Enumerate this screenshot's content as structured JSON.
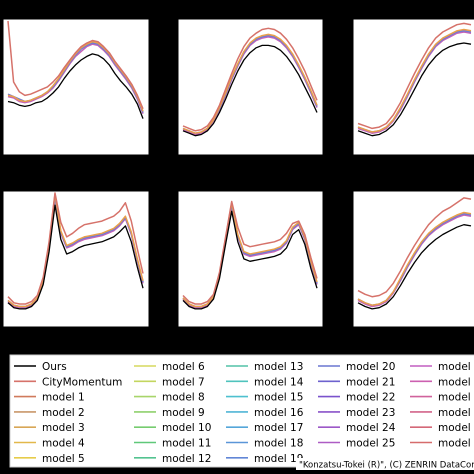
{
  "caption": "\"Konzatsu-Tokei (R)\", (C) ZENRIN DataCom",
  "legend": {
    "columns": [
      [
        {
          "label": "Ours",
          "color": "#000000"
        },
        {
          "label": "CityMomentum",
          "color": "#d6726a"
        },
        {
          "label": "model 1",
          "color": "#d07a5c"
        },
        {
          "label": "model 2",
          "color": "#c9976a"
        },
        {
          "label": "model 3",
          "color": "#d8a656"
        },
        {
          "label": "model 4",
          "color": "#e2b84a"
        },
        {
          "label": "model 5",
          "color": "#e6cc4a"
        }
      ],
      [
        {
          "label": "model 6",
          "color": "#d5d85e"
        },
        {
          "label": "model 7",
          "color": "#c3d65f"
        },
        {
          "label": "model 8",
          "color": "#a8d56a"
        },
        {
          "label": "model 9",
          "color": "#8fd16d"
        },
        {
          "label": "model 10",
          "color": "#76cc6f"
        },
        {
          "label": "model 11",
          "color": "#5fc879"
        },
        {
          "label": "model 12",
          "color": "#54c390"
        }
      ],
      [
        {
          "label": "model 13",
          "color": "#52c2a7"
        },
        {
          "label": "model 14",
          "color": "#4fc3bd"
        },
        {
          "label": "model 15",
          "color": "#4ec0cf"
        },
        {
          "label": "model 16",
          "color": "#50b5d6"
        },
        {
          "label": "model 17",
          "color": "#55a6d9"
        },
        {
          "label": "model 18",
          "color": "#5a96d8"
        },
        {
          "label": "model 19",
          "color": "#6286d6"
        }
      ],
      [
        {
          "label": "model 20",
          "color": "#6a76d1"
        },
        {
          "label": "model 21",
          "color": "#6d62ce"
        },
        {
          "label": "model 22",
          "color": "#7a52cc"
        },
        {
          "label": "model 23",
          "color": "#8a52c9"
        },
        {
          "label": "model 24",
          "color": "#9c58c8"
        },
        {
          "label": "model 25",
          "color": "#ad5cc4"
        }
      ],
      [
        {
          "label": "model",
          "color": "#c25ec0"
        },
        {
          "label": "model",
          "color": "#cc60b0"
        },
        {
          "label": "model",
          "color": "#d0629c"
        },
        {
          "label": "model",
          "color": "#d2648a"
        },
        {
          "label": "model",
          "color": "#d46878"
        },
        {
          "label": "model",
          "color": "#d66c6c"
        }
      ]
    ]
  },
  "chart_data": [
    {
      "type": "line",
      "panel": 1,
      "title": "",
      "xlabel": "",
      "ylabel": "",
      "ylim": [
        0,
        1
      ],
      "series": [
        {
          "color": "#000000",
          "y": [
            0.34,
            0.33,
            0.31,
            0.3,
            0.31,
            0.33,
            0.34,
            0.37,
            0.41,
            0.46,
            0.53,
            0.59,
            0.64,
            0.68,
            0.71,
            0.73,
            0.72,
            0.69,
            0.64,
            0.57,
            0.51,
            0.46,
            0.4,
            0.32,
            0.2
          ]
        },
        {
          "color": "#c563b8",
          "y": [
            0.38,
            0.37,
            0.34,
            0.33,
            0.34,
            0.36,
            0.38,
            0.41,
            0.45,
            0.51,
            0.58,
            0.65,
            0.71,
            0.75,
            0.79,
            0.81,
            0.8,
            0.76,
            0.71,
            0.64,
            0.58,
            0.52,
            0.45,
            0.36,
            0.24
          ]
        },
        {
          "color": "#6d7ad4",
          "y": [
            0.4,
            0.38,
            0.36,
            0.34,
            0.35,
            0.37,
            0.39,
            0.42,
            0.46,
            0.52,
            0.59,
            0.66,
            0.72,
            0.77,
            0.8,
            0.82,
            0.81,
            0.77,
            0.72,
            0.65,
            0.59,
            0.53,
            0.46,
            0.37,
            0.25
          ]
        },
        {
          "color": "#e9a04a",
          "y": [
            0.39,
            0.38,
            0.35,
            0.34,
            0.35,
            0.37,
            0.39,
            0.42,
            0.47,
            0.53,
            0.6,
            0.67,
            0.73,
            0.78,
            0.81,
            0.83,
            0.82,
            0.78,
            0.73,
            0.66,
            0.6,
            0.54,
            0.47,
            0.38,
            0.26
          ]
        },
        {
          "color": "#d6726a",
          "y": [
            1.0,
            0.5,
            0.42,
            0.39,
            0.4,
            0.42,
            0.44,
            0.46,
            0.5,
            0.55,
            0.62,
            0.68,
            0.74,
            0.79,
            0.82,
            0.84,
            0.83,
            0.79,
            0.74,
            0.67,
            0.61,
            0.55,
            0.48,
            0.39,
            0.28
          ]
        }
      ]
    },
    {
      "type": "line",
      "panel": 2,
      "title": "",
      "xlabel": "",
      "ylabel": "",
      "ylim": [
        0,
        1
      ],
      "series": [
        {
          "color": "#000000",
          "y": [
            0.1,
            0.08,
            0.06,
            0.07,
            0.1,
            0.16,
            0.25,
            0.36,
            0.48,
            0.59,
            0.68,
            0.74,
            0.78,
            0.8,
            0.8,
            0.79,
            0.76,
            0.71,
            0.64,
            0.56,
            0.46,
            0.36,
            0.25
          ]
        },
        {
          "color": "#c563b8",
          "y": [
            0.11,
            0.09,
            0.07,
            0.08,
            0.11,
            0.18,
            0.27,
            0.39,
            0.52,
            0.63,
            0.73,
            0.8,
            0.84,
            0.86,
            0.87,
            0.86,
            0.83,
            0.78,
            0.71,
            0.62,
            0.52,
            0.41,
            0.29
          ]
        },
        {
          "color": "#6d7ad4",
          "y": [
            0.12,
            0.1,
            0.08,
            0.09,
            0.12,
            0.19,
            0.28,
            0.4,
            0.53,
            0.64,
            0.74,
            0.81,
            0.85,
            0.87,
            0.88,
            0.87,
            0.84,
            0.79,
            0.72,
            0.63,
            0.53,
            0.42,
            0.3
          ]
        },
        {
          "color": "#e9a04a",
          "y": [
            0.12,
            0.1,
            0.08,
            0.09,
            0.12,
            0.19,
            0.29,
            0.41,
            0.54,
            0.65,
            0.75,
            0.82,
            0.86,
            0.88,
            0.89,
            0.88,
            0.85,
            0.8,
            0.73,
            0.64,
            0.54,
            0.43,
            0.31
          ]
        },
        {
          "color": "#d6726a",
          "y": [
            0.14,
            0.12,
            0.1,
            0.11,
            0.14,
            0.21,
            0.31,
            0.44,
            0.57,
            0.69,
            0.79,
            0.86,
            0.9,
            0.93,
            0.94,
            0.93,
            0.9,
            0.85,
            0.78,
            0.69,
            0.59,
            0.47,
            0.35
          ]
        }
      ]
    },
    {
      "type": "line",
      "panel": 3,
      "title": "",
      "xlabel": "",
      "ylabel": "",
      "ylim": [
        0,
        1
      ],
      "series": [
        {
          "color": "#000000",
          "y": [
            0.1,
            0.08,
            0.06,
            0.07,
            0.1,
            0.15,
            0.23,
            0.33,
            0.44,
            0.55,
            0.64,
            0.71,
            0.76,
            0.79,
            0.81,
            0.82,
            0.81
          ]
        },
        {
          "color": "#c563b8",
          "y": [
            0.12,
            0.1,
            0.08,
            0.09,
            0.12,
            0.18,
            0.27,
            0.38,
            0.5,
            0.61,
            0.71,
            0.79,
            0.84,
            0.87,
            0.9,
            0.91,
            0.9
          ]
        },
        {
          "color": "#6d7ad4",
          "y": [
            0.13,
            0.11,
            0.09,
            0.1,
            0.13,
            0.19,
            0.28,
            0.39,
            0.51,
            0.62,
            0.72,
            0.8,
            0.85,
            0.88,
            0.91,
            0.92,
            0.91
          ]
        },
        {
          "color": "#e9a04a",
          "y": [
            0.13,
            0.11,
            0.09,
            0.1,
            0.13,
            0.19,
            0.29,
            0.4,
            0.52,
            0.63,
            0.73,
            0.81,
            0.86,
            0.89,
            0.92,
            0.93,
            0.92
          ]
        },
        {
          "color": "#d6726a",
          "y": [
            0.16,
            0.14,
            0.12,
            0.13,
            0.16,
            0.23,
            0.33,
            0.45,
            0.57,
            0.68,
            0.78,
            0.86,
            0.91,
            0.94,
            0.97,
            0.98,
            0.97
          ]
        }
      ]
    },
    {
      "type": "line",
      "panel": 4,
      "title": "",
      "xlabel": "",
      "ylabel": "",
      "ylim": [
        0,
        1
      ],
      "series": [
        {
          "color": "#000000",
          "y": [
            0.1,
            0.06,
            0.05,
            0.05,
            0.07,
            0.12,
            0.25,
            0.52,
            0.9,
            0.62,
            0.5,
            0.52,
            0.55,
            0.57,
            0.58,
            0.59,
            0.6,
            0.62,
            0.64,
            0.68,
            0.73,
            0.6,
            0.4,
            0.22
          ]
        },
        {
          "color": "#c563b8",
          "y": [
            0.11,
            0.07,
            0.06,
            0.06,
            0.08,
            0.13,
            0.27,
            0.56,
            0.96,
            0.67,
            0.55,
            0.57,
            0.6,
            0.62,
            0.63,
            0.64,
            0.65,
            0.67,
            0.69,
            0.73,
            0.79,
            0.66,
            0.45,
            0.26
          ]
        },
        {
          "color": "#6d7ad4",
          "y": [
            0.12,
            0.08,
            0.07,
            0.07,
            0.09,
            0.14,
            0.28,
            0.57,
            0.97,
            0.68,
            0.56,
            0.58,
            0.61,
            0.63,
            0.64,
            0.65,
            0.66,
            0.68,
            0.7,
            0.74,
            0.8,
            0.67,
            0.46,
            0.27
          ]
        },
        {
          "color": "#e9a04a",
          "y": [
            0.12,
            0.08,
            0.07,
            0.07,
            0.09,
            0.14,
            0.29,
            0.58,
            0.99,
            0.69,
            0.57,
            0.59,
            0.62,
            0.64,
            0.65,
            0.66,
            0.67,
            0.69,
            0.71,
            0.75,
            0.81,
            0.68,
            0.47,
            0.28
          ]
        },
        {
          "color": "#d6726a",
          "y": [
            0.15,
            0.1,
            0.09,
            0.09,
            0.11,
            0.16,
            0.31,
            0.6,
            1.0,
            0.76,
            0.64,
            0.67,
            0.71,
            0.74,
            0.75,
            0.76,
            0.77,
            0.79,
            0.81,
            0.85,
            0.92,
            0.77,
            0.55,
            0.34
          ]
        }
      ]
    },
    {
      "type": "line",
      "panel": 5,
      "title": "",
      "xlabel": "",
      "ylabel": "",
      "ylim": [
        0,
        1
      ],
      "series": [
        {
          "color": "#000000",
          "y": [
            0.12,
            0.07,
            0.05,
            0.05,
            0.07,
            0.13,
            0.3,
            0.58,
            0.85,
            0.6,
            0.46,
            0.44,
            0.45,
            0.46,
            0.47,
            0.48,
            0.5,
            0.55,
            0.66,
            0.7,
            0.58,
            0.38,
            0.22
          ]
        },
        {
          "color": "#c563b8",
          "y": [
            0.13,
            0.08,
            0.06,
            0.06,
            0.08,
            0.14,
            0.32,
            0.61,
            0.89,
            0.64,
            0.5,
            0.48,
            0.49,
            0.5,
            0.51,
            0.52,
            0.54,
            0.59,
            0.7,
            0.74,
            0.62,
            0.42,
            0.25
          ]
        },
        {
          "color": "#6d7ad4",
          "y": [
            0.14,
            0.09,
            0.07,
            0.07,
            0.09,
            0.15,
            0.33,
            0.62,
            0.9,
            0.65,
            0.51,
            0.49,
            0.5,
            0.51,
            0.52,
            0.53,
            0.55,
            0.6,
            0.71,
            0.75,
            0.63,
            0.43,
            0.26
          ]
        },
        {
          "color": "#e9a04a",
          "y": [
            0.14,
            0.09,
            0.07,
            0.07,
            0.09,
            0.15,
            0.34,
            0.63,
            0.92,
            0.66,
            0.52,
            0.5,
            0.51,
            0.52,
            0.53,
            0.54,
            0.56,
            0.61,
            0.72,
            0.76,
            0.64,
            0.44,
            0.27
          ]
        },
        {
          "color": "#d6726a",
          "y": [
            0.16,
            0.11,
            0.09,
            0.09,
            0.11,
            0.17,
            0.35,
            0.64,
            0.93,
            0.72,
            0.58,
            0.56,
            0.57,
            0.58,
            0.59,
            0.6,
            0.62,
            0.67,
            0.75,
            0.77,
            0.66,
            0.47,
            0.3
          ]
        }
      ]
    },
    {
      "type": "line",
      "panel": 6,
      "title": "",
      "xlabel": "",
      "ylabel": "",
      "ylim": [
        0,
        1
      ],
      "series": [
        {
          "color": "#000000",
          "y": [
            0.1,
            0.07,
            0.05,
            0.06,
            0.09,
            0.15,
            0.24,
            0.34,
            0.43,
            0.51,
            0.57,
            0.62,
            0.66,
            0.69,
            0.72,
            0.74,
            0.73
          ]
        },
        {
          "color": "#c563b8",
          "y": [
            0.12,
            0.09,
            0.07,
            0.08,
            0.11,
            0.18,
            0.28,
            0.39,
            0.49,
            0.58,
            0.65,
            0.7,
            0.74,
            0.77,
            0.8,
            0.82,
            0.81
          ]
        },
        {
          "color": "#6d7ad4",
          "y": [
            0.13,
            0.1,
            0.08,
            0.09,
            0.12,
            0.19,
            0.29,
            0.4,
            0.5,
            0.59,
            0.66,
            0.71,
            0.75,
            0.78,
            0.81,
            0.83,
            0.82
          ]
        },
        {
          "color": "#e9a04a",
          "y": [
            0.13,
            0.1,
            0.08,
            0.09,
            0.12,
            0.19,
            0.3,
            0.41,
            0.51,
            0.6,
            0.67,
            0.72,
            0.76,
            0.79,
            0.82,
            0.84,
            0.83
          ]
        },
        {
          "color": "#d6726a",
          "y": [
            0.2,
            0.17,
            0.15,
            0.16,
            0.19,
            0.26,
            0.36,
            0.47,
            0.57,
            0.66,
            0.74,
            0.8,
            0.85,
            0.88,
            0.92,
            0.96,
            0.95
          ]
        }
      ]
    }
  ]
}
